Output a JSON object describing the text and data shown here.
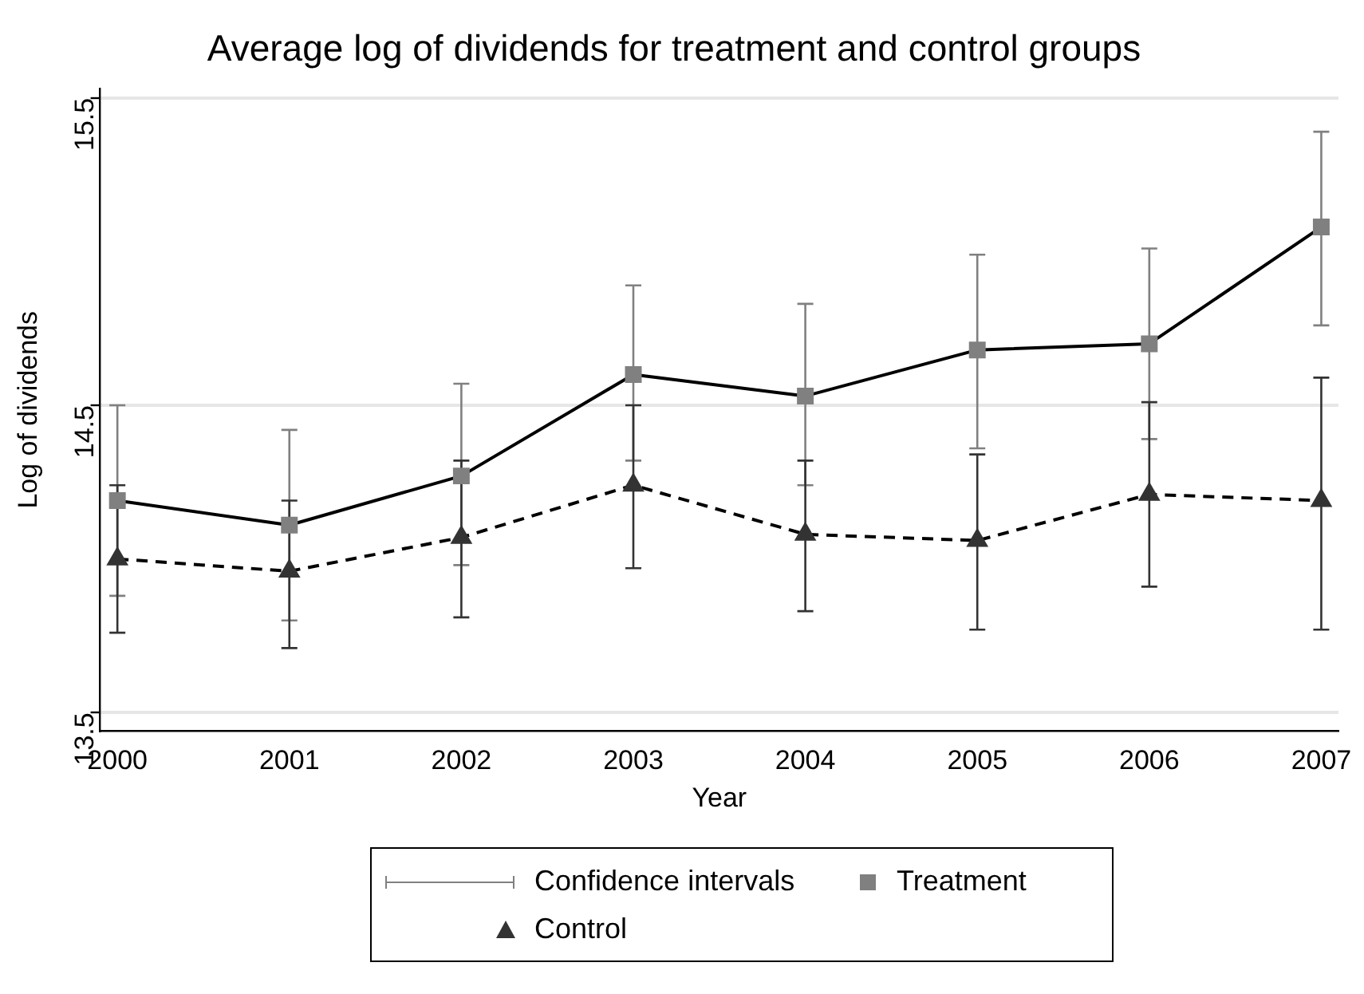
{
  "chart_data": {
    "type": "line",
    "title": "Average log of dividends for treatment and control groups",
    "xlabel": "Year",
    "ylabel": "Log of dividends",
    "x": [
      2000,
      2001,
      2002,
      2003,
      2004,
      2005,
      2006,
      2007
    ],
    "xlim": [
      1999.9,
      2007.1
    ],
    "xticks": [
      2000,
      2001,
      2002,
      2003,
      2004,
      2005,
      2006,
      2007
    ],
    "ylim": [
      13.44,
      15.53
    ],
    "yticks": [
      13.5,
      14.5,
      15.5
    ],
    "grid": "y",
    "legend": "bottom",
    "annotations": [
      "Confidence intervals"
    ],
    "series": [
      {
        "name": "Treatment",
        "color": "#808080",
        "marker": "square",
        "line_style": "solid",
        "values": [
          14.19,
          14.11,
          14.27,
          14.6,
          14.53,
          14.68,
          14.7,
          15.08
        ],
        "errors": [
          [
            13.88,
            14.5
          ],
          [
            13.8,
            14.42
          ],
          [
            13.98,
            14.57
          ],
          [
            14.32,
            14.89
          ],
          [
            14.24,
            14.83
          ],
          [
            14.36,
            14.99
          ],
          [
            14.39,
            15.01
          ],
          [
            14.76,
            15.39
          ]
        ]
      },
      {
        "name": "Control",
        "color": "#333333",
        "marker": "triangle",
        "line_style": "dashed",
        "values": [
          14.0,
          13.96,
          14.07,
          14.24,
          14.08,
          14.06,
          14.21,
          14.19
        ],
        "errors": [
          [
            13.76,
            14.24
          ],
          [
            13.71,
            14.19
          ],
          [
            13.81,
            14.32
          ],
          [
            13.97,
            14.5
          ],
          [
            13.83,
            14.32
          ],
          [
            13.77,
            14.34
          ],
          [
            13.91,
            14.51
          ],
          [
            13.77,
            14.59
          ]
        ]
      }
    ]
  }
}
